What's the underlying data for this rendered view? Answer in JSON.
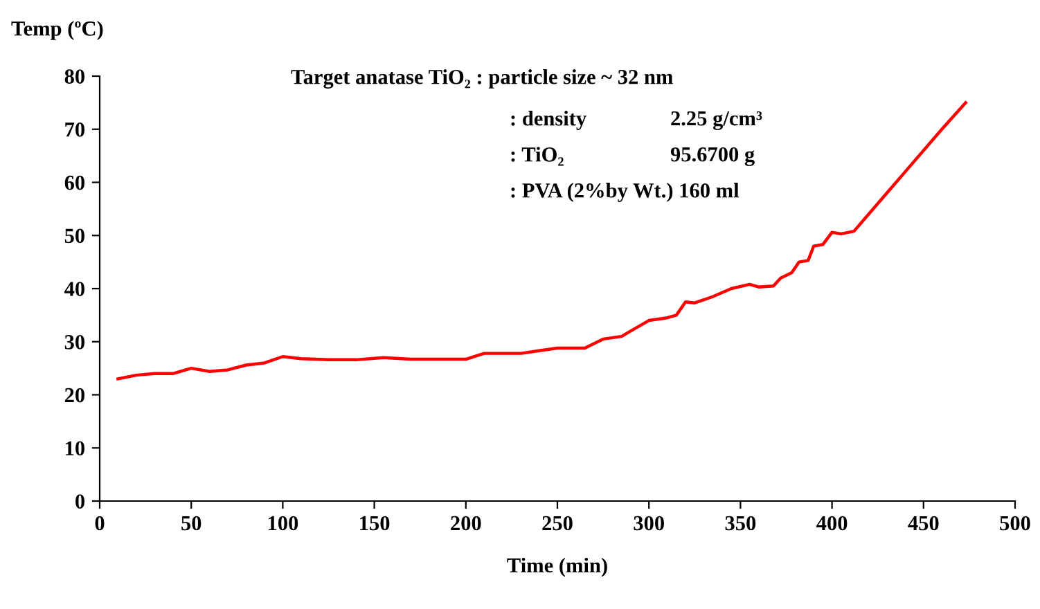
{
  "chart_data": {
    "type": "line",
    "xlabel": "Time (min)",
    "ylabel": "Temp (ºC)",
    "x": [
      10,
      20,
      30,
      40,
      50,
      60,
      70,
      80,
      90,
      100,
      110,
      125,
      140,
      155,
      170,
      190,
      200,
      210,
      220,
      230,
      240,
      250,
      265,
      275,
      285,
      290,
      300,
      310,
      315,
      320,
      325,
      335,
      345,
      355,
      360,
      368,
      372,
      378,
      382,
      387,
      390,
      395,
      400,
      405,
      412,
      420,
      440,
      460,
      473
    ],
    "series": [
      {
        "color": "#ff0000",
        "values": [
          23,
          23.7,
          24,
          24,
          25,
          24.4,
          24.7,
          25.6,
          26,
          27.2,
          26.8,
          26.6,
          26.6,
          27,
          26.7,
          26.7,
          26.7,
          27.8,
          27.8,
          27.8,
          28.3,
          28.8,
          28.8,
          30.5,
          31,
          32,
          34,
          34.5,
          35,
          37.5,
          37.3,
          38.5,
          40,
          40.8,
          40.3,
          40.5,
          42,
          43,
          45,
          45.3,
          48,
          48.3,
          50.6,
          50.3,
          50.8,
          54,
          62,
          70,
          75
        ]
      }
    ],
    "xlim": [
      0,
      500
    ],
    "xticks": [
      0,
      50,
      100,
      150,
      200,
      250,
      300,
      350,
      400,
      450,
      500
    ],
    "ylim": [
      0,
      80
    ],
    "yticks": [
      0,
      10,
      20,
      30,
      40,
      50,
      60,
      70,
      80
    ],
    "grid": false,
    "legend": false,
    "marker": "none",
    "line_style": "solid",
    "annotations": [
      "Target anatase TiO₂ : particle size ~ 32 nm",
      ": density",
      "2.25 g/cm³",
      ": TiO₂",
      "95.6700 g",
      ": PVA (2%by Wt.) 160 ml"
    ]
  }
}
